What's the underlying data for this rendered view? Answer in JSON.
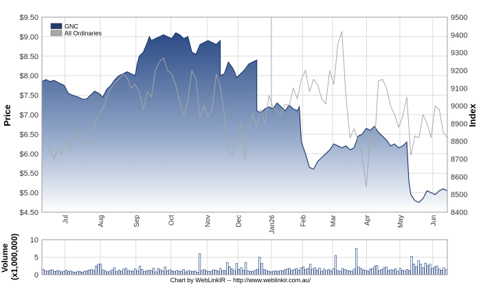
{
  "colors": {
    "primary_line": "#1f3d6e",
    "gradient_top": "#2a4a85",
    "gradient_bottom": "#ffffff",
    "index_line": "#a8a8a8",
    "grid": "#dcdcdc",
    "axis_text": "#333333",
    "volume_bar": "#2a4a85"
  },
  "chart_data": [
    {
      "type": "area",
      "legend": [
        "GNC",
        "All Ordinaries"
      ],
      "legend_placement": "top-left",
      "grid": true,
      "ylabel": "Price",
      "y2label": "Index",
      "ylim": [
        4.5,
        9.5
      ],
      "y2lim": [
        8400,
        9500
      ],
      "yticks": [
        "$4.50",
        "$5.00",
        "$5.50",
        "$6.00",
        "$6.50",
        "$7.00",
        "$7.50",
        "$8.00",
        "$8.50",
        "$9.00",
        "$9.50"
      ],
      "y2ticks": [
        "8400",
        "8500",
        "8600",
        "8700",
        "8800",
        "8900",
        "9000",
        "9100",
        "9200",
        "9300",
        "9400",
        "9500"
      ],
      "xticks": [
        "Jul",
        "Aug",
        "Sep",
        "Oct",
        "Nov",
        "Dec",
        "Jan26",
        "Feb",
        "Mar",
        "Apr",
        "May",
        "Jun"
      ],
      "xtick_pos": [
        0.057,
        0.144,
        0.232,
        0.318,
        0.408,
        0.484,
        0.566,
        0.643,
        0.717,
        0.801,
        0.883,
        0.964
      ],
      "series": [
        {
          "name": "GNC",
          "x": [
            0,
            0.01,
            0.02,
            0.03,
            0.045,
            0.055,
            0.065,
            0.075,
            0.09,
            0.1,
            0.11,
            0.12,
            0.13,
            0.14,
            0.15,
            0.16,
            0.17,
            0.18,
            0.19,
            0.2,
            0.21,
            0.22,
            0.23,
            0.235,
            0.24,
            0.25,
            0.26,
            0.265,
            0.27,
            0.28,
            0.29,
            0.3,
            0.31,
            0.32,
            0.33,
            0.34,
            0.35,
            0.36,
            0.365,
            0.37,
            0.38,
            0.39,
            0.4,
            0.41,
            0.42,
            0.43,
            0.44,
            0.44,
            0.45,
            0.46,
            0.47,
            0.475,
            0.48,
            0.49,
            0.5,
            0.51,
            0.52,
            0.53,
            0.53,
            0.54,
            0.55,
            0.56,
            0.57,
            0.58,
            0.59,
            0.6,
            0.61,
            0.62,
            0.63,
            0.635,
            0.64,
            0.65,
            0.66,
            0.67,
            0.68,
            0.69,
            0.7,
            0.71,
            0.72,
            0.73,
            0.74,
            0.75,
            0.76,
            0.77,
            0.78,
            0.79,
            0.8,
            0.81,
            0.82,
            0.83,
            0.84,
            0.85,
            0.86,
            0.87,
            0.88,
            0.89,
            0.9,
            0.905,
            0.91,
            0.92,
            0.93,
            0.94,
            0.95,
            0.96,
            0.97,
            0.98,
            0.99,
            1.0
          ],
          "values": [
            7.85,
            7.9,
            7.85,
            7.88,
            7.8,
            7.75,
            7.55,
            7.5,
            7.45,
            7.4,
            7.4,
            7.5,
            7.6,
            7.55,
            7.45,
            7.65,
            7.75,
            7.9,
            8.0,
            8.05,
            8.1,
            8.05,
            8.0,
            8.3,
            8.5,
            8.6,
            8.85,
            9.0,
            8.9,
            8.95,
            9.0,
            9.05,
            9.0,
            8.95,
            9.1,
            9.05,
            8.95,
            9.0,
            8.8,
            8.6,
            8.55,
            8.8,
            8.85,
            8.9,
            8.85,
            8.8,
            8.9,
            8.0,
            8.05,
            8.35,
            8.2,
            8.1,
            7.95,
            8.05,
            8.15,
            8.3,
            8.35,
            8.4,
            7.1,
            7.05,
            7.15,
            7.2,
            7.15,
            7.3,
            7.2,
            7.1,
            7.25,
            7.15,
            7.1,
            7.2,
            6.3,
            6.0,
            5.65,
            5.6,
            5.8,
            5.9,
            6.0,
            6.1,
            6.25,
            6.2,
            6.15,
            6.2,
            6.1,
            6.15,
            6.45,
            6.5,
            6.65,
            6.6,
            6.7,
            6.55,
            6.45,
            6.35,
            6.2,
            6.25,
            6.15,
            6.2,
            6.3,
            5.3,
            4.95,
            4.8,
            4.75,
            4.85,
            5.05,
            5.0,
            4.95,
            5.05,
            5.1,
            5.05
          ]
        },
        {
          "name": "All Ordinaries",
          "axis": "right",
          "x": [
            0,
            0.01,
            0.02,
            0.03,
            0.04,
            0.05,
            0.06,
            0.07,
            0.08,
            0.09,
            0.1,
            0.11,
            0.12,
            0.13,
            0.14,
            0.15,
            0.16,
            0.17,
            0.18,
            0.19,
            0.2,
            0.21,
            0.22,
            0.23,
            0.24,
            0.25,
            0.26,
            0.27,
            0.28,
            0.29,
            0.3,
            0.31,
            0.32,
            0.33,
            0.34,
            0.35,
            0.36,
            0.37,
            0.38,
            0.39,
            0.4,
            0.41,
            0.42,
            0.43,
            0.44,
            0.45,
            0.46,
            0.47,
            0.48,
            0.49,
            0.5,
            0.51,
            0.52,
            0.53,
            0.54,
            0.55,
            0.56,
            0.57,
            0.58,
            0.59,
            0.6,
            0.61,
            0.62,
            0.63,
            0.64,
            0.65,
            0.66,
            0.67,
            0.68,
            0.69,
            0.7,
            0.71,
            0.72,
            0.73,
            0.74,
            0.75,
            0.76,
            0.77,
            0.78,
            0.79,
            0.8,
            0.81,
            0.82,
            0.83,
            0.84,
            0.85,
            0.86,
            0.87,
            0.88,
            0.89,
            0.9,
            0.91,
            0.92,
            0.93,
            0.94,
            0.95,
            0.96,
            0.97,
            0.98,
            0.99,
            1.0
          ],
          "values": [
            8810,
            8790,
            8760,
            8700,
            8760,
            8730,
            8800,
            8750,
            8870,
            8820,
            8780,
            8820,
            8790,
            8900,
            8950,
            8980,
            9050,
            9100,
            9130,
            9150,
            9180,
            9160,
            9100,
            9120,
            9080,
            8980,
            9080,
            9050,
            9200,
            9250,
            9270,
            9200,
            9180,
            9120,
            9020,
            8950,
            9030,
            9200,
            9150,
            8930,
            9000,
            8940,
            8980,
            9180,
            9110,
            8950,
            8750,
            8720,
            8820,
            8900,
            8700,
            8880,
            8950,
            8880,
            8980,
            8900,
            9060,
            8990,
            8970,
            8950,
            9010,
            9000,
            9100,
            9040,
            9150,
            9200,
            9080,
            9150,
            9120,
            9040,
            9010,
            9200,
            9120,
            9350,
            9420,
            9050,
            8820,
            8870,
            8800,
            8720,
            8540,
            8830,
            8770,
            9140,
            9150,
            9100,
            9000,
            8950,
            8880,
            8940,
            9050,
            8720,
            8830,
            8820,
            8950,
            8900,
            8820,
            9000,
            8980,
            8850,
            8820
          ]
        }
      ]
    },
    {
      "type": "bar",
      "ylabel": "Volume (x1,000,000)",
      "ylim": [
        0,
        10
      ],
      "yticks": [
        "0",
        "5",
        "10"
      ],
      "grid": true,
      "values": [
        1.5,
        1.2,
        1.0,
        1.3,
        1.4,
        0.9,
        1.1,
        1.2,
        0.8,
        1.0,
        1.3,
        0.9,
        1.1,
        0.8,
        0.7,
        1.0,
        0.9,
        0.7,
        1.0,
        1.1,
        1.3,
        1.5,
        1.2,
        2.5,
        3.0,
        3.0,
        1.4,
        1.1,
        0.8,
        1.0,
        1.4,
        2.0,
        0.9,
        1.3,
        1.0,
        1.6,
        1.8,
        1.2,
        1.1,
        1.0,
        1.7,
        1.1,
        2.4,
        1.5,
        0.9,
        1.1,
        1.3,
        1.2,
        1.9,
        0.8,
        1.8,
        1.4,
        1.1,
        2.2,
        1.1,
        1.4,
        1.1,
        0.9,
        1.2,
        1.0,
        1.0,
        1.5,
        0.8,
        1.2,
        1.0,
        0.9,
        1.1,
        0.7,
        6.0,
        1.2,
        1.5,
        1.1,
        0.9,
        1.0,
        1.4,
        1.3,
        1.0,
        1.8,
        1.2,
        1.2,
        3.5,
        2.3,
        1.7,
        1.2,
        3.2,
        1.5,
        2.0,
        1.3,
        3.5,
        1.1,
        0.9,
        1.0,
        1.2,
        1.5,
        5.0,
        3.2,
        1.5,
        1.2,
        1.0,
        0.8,
        1.0,
        1.1,
        0.9,
        1.2,
        1.1,
        1.4,
        1.6,
        1.8,
        1.2,
        1.5,
        1.8,
        1.3,
        2.0,
        2.2,
        1.5,
        1.8,
        3.0,
        1.6,
        2.0,
        1.3,
        1.9,
        1.0,
        1.6,
        1.2,
        1.5,
        1.1,
        1.7,
        5.5,
        1.2,
        1.0,
        1.8,
        1.5,
        1.2,
        1.1,
        1.0,
        1.6,
        7.5,
        2.2,
        1.8,
        1.4,
        1.3,
        1.0,
        1.6,
        1.8,
        2.4,
        2.6,
        1.2,
        1.5,
        2.0,
        2.2,
        1.2,
        1.4,
        1.3,
        1.7,
        1.0,
        1.8,
        1.3,
        1.1,
        1.5,
        1.2,
        5.2,
        3.0,
        2.3,
        4.0,
        3.0,
        2.0,
        3.3,
        2.6,
        3.0,
        1.8,
        2.2,
        2.5,
        1.6,
        1.3,
        2.0,
        1.4
      ]
    }
  ],
  "footer": "Chart by WebLinkIR -- http://www.weblinkir.com.au/"
}
